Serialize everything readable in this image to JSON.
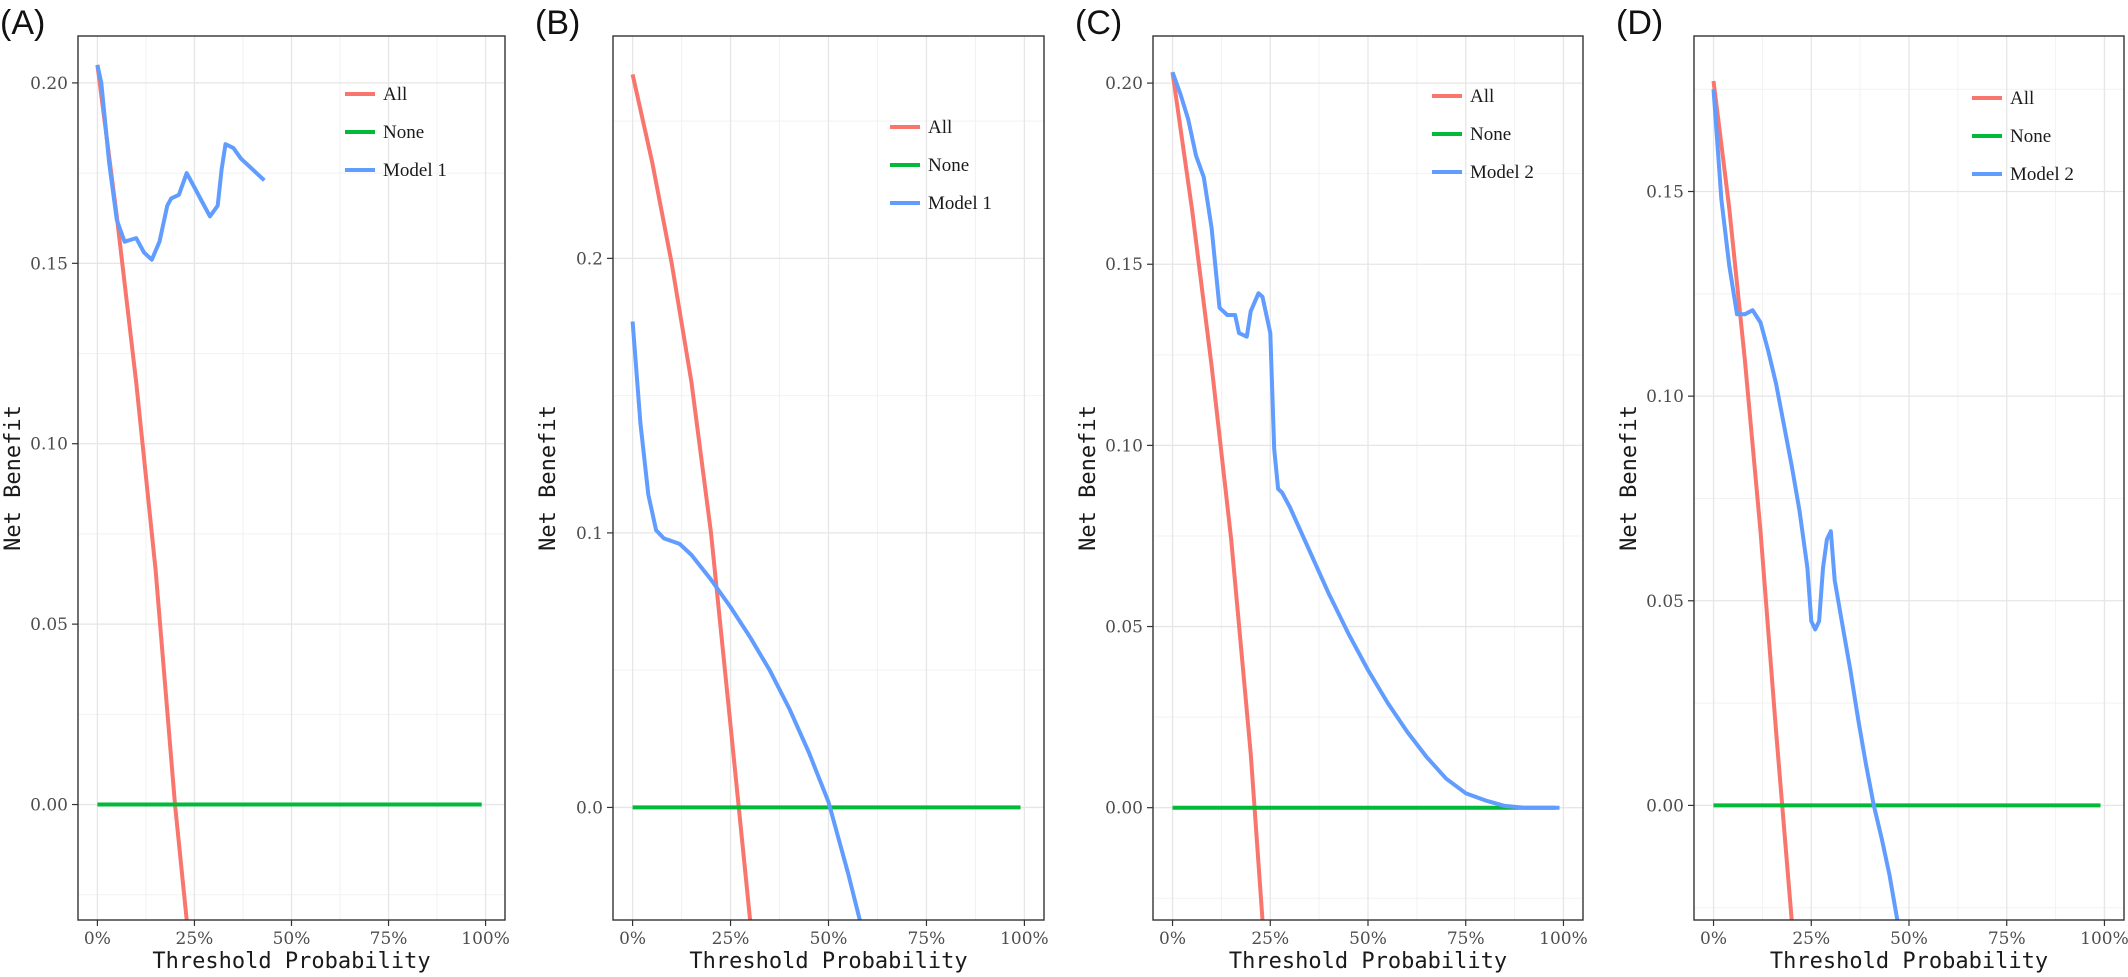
{
  "colors": {
    "all": "#F8766D",
    "none": "#00BA38",
    "model": "#619CFF"
  },
  "chart_data": [
    {
      "panel": "(A)",
      "type": "line",
      "xlabel": "Threshold Probability",
      "ylabel": "Net Benefit",
      "x_ticks": [
        "0%",
        "25%",
        "50%",
        "75%",
        "100%"
      ],
      "y_ticks": [
        "0.00",
        "0.05",
        "0.10",
        "0.15",
        "0.20"
      ],
      "xlim": [
        -0.05,
        1.05
      ],
      "ylim": [
        -0.032,
        0.213
      ],
      "y_tick_values": [
        0,
        0.05,
        0.1,
        0.15,
        0.2
      ],
      "grid": true,
      "legend_position": "top-right",
      "series": [
        {
          "name": "All",
          "color_key": "all",
          "x": [
            0,
            0.05,
            0.1,
            0.15,
            0.2,
            0.23
          ],
          "y": [
            0.205,
            0.163,
            0.117,
            0.065,
            0.0,
            -0.032
          ]
        },
        {
          "name": "None",
          "color_key": "none",
          "x": [
            0,
            0.99
          ],
          "y": [
            0,
            0
          ]
        },
        {
          "name": "Model 1",
          "color_key": "model",
          "x": [
            0,
            0.01,
            0.03,
            0.05,
            0.07,
            0.1,
            0.12,
            0.14,
            0.16,
            0.18,
            0.19,
            0.21,
            0.23,
            0.25,
            0.27,
            0.29,
            0.31,
            0.32,
            0.33,
            0.35,
            0.37,
            0.39,
            0.43
          ],
          "y": [
            0.205,
            0.2,
            0.178,
            0.162,
            0.156,
            0.157,
            0.153,
            0.151,
            0.156,
            0.166,
            0.168,
            0.169,
            0.175,
            0.171,
            0.167,
            0.163,
            0.166,
            0.176,
            0.183,
            0.182,
            0.179,
            0.177,
            0.173
          ]
        }
      ]
    },
    {
      "panel": "(B)",
      "type": "line",
      "xlabel": "Threshold Probability",
      "ylabel": "Net Benefit",
      "x_ticks": [
        "0%",
        "25%",
        "50%",
        "75%",
        "100%"
      ],
      "y_ticks": [
        "0.0",
        "0.1",
        "0.2"
      ],
      "xlim": [
        -0.05,
        1.05
      ],
      "ylim": [
        -0.041,
        0.281
      ],
      "y_tick_values": [
        0,
        0.1,
        0.2
      ],
      "grid": true,
      "legend_position": "top-right",
      "series": [
        {
          "name": "All",
          "color_key": "all",
          "x": [
            0,
            0.05,
            0.1,
            0.15,
            0.2,
            0.25,
            0.3
          ],
          "y": [
            0.267,
            0.235,
            0.198,
            0.155,
            0.1,
            0.03,
            -0.041
          ]
        },
        {
          "name": "None",
          "color_key": "none",
          "x": [
            0,
            0.99
          ],
          "y": [
            0,
            0
          ]
        },
        {
          "name": "Model 1",
          "color_key": "model",
          "x": [
            0,
            0.02,
            0.04,
            0.06,
            0.08,
            0.1,
            0.12,
            0.15,
            0.2,
            0.25,
            0.3,
            0.35,
            0.4,
            0.45,
            0.5,
            0.55,
            0.58
          ],
          "y": [
            0.177,
            0.14,
            0.114,
            0.101,
            0.098,
            0.097,
            0.096,
            0.092,
            0.083,
            0.073,
            0.062,
            0.05,
            0.036,
            0.02,
            0.002,
            -0.024,
            -0.041
          ]
        }
      ]
    },
    {
      "panel": "(C)",
      "type": "line",
      "xlabel": "Threshold Probability",
      "ylabel": "Net Benefit",
      "x_ticks": [
        "0%",
        "25%",
        "50%",
        "75%",
        "100%"
      ],
      "y_ticks": [
        "0.00",
        "0.05",
        "0.10",
        "0.15",
        "0.20"
      ],
      "xlim": [
        -0.05,
        1.05
      ],
      "ylim": [
        -0.031,
        0.213
      ],
      "y_tick_values": [
        0,
        0.05,
        0.1,
        0.15,
        0.2
      ],
      "grid": true,
      "legend_position": "top-right",
      "series": [
        {
          "name": "All",
          "color_key": "all",
          "x": [
            0,
            0.05,
            0.1,
            0.15,
            0.2,
            0.23
          ],
          "y": [
            0.203,
            0.165,
            0.122,
            0.074,
            0.015,
            -0.031
          ]
        },
        {
          "name": "None",
          "color_key": "none",
          "x": [
            0,
            0.98
          ],
          "y": [
            0,
            0
          ]
        },
        {
          "name": "Model 2",
          "color_key": "model",
          "x": [
            0,
            0.02,
            0.04,
            0.06,
            0.08,
            0.1,
            0.12,
            0.14,
            0.16,
            0.17,
            0.19,
            0.2,
            0.22,
            0.23,
            0.25,
            0.26,
            0.27,
            0.28,
            0.3,
            0.35,
            0.4,
            0.45,
            0.5,
            0.55,
            0.6,
            0.65,
            0.7,
            0.75,
            0.8,
            0.85,
            0.9,
            0.95,
            0.99
          ],
          "y": [
            0.203,
            0.197,
            0.19,
            0.18,
            0.174,
            0.16,
            0.138,
            0.136,
            0.136,
            0.131,
            0.13,
            0.137,
            0.142,
            0.141,
            0.131,
            0.099,
            0.088,
            0.087,
            0.083,
            0.071,
            0.059,
            0.048,
            0.038,
            0.029,
            0.021,
            0.014,
            0.008,
            0.004,
            0.002,
            0.0005,
            0.0,
            0.0,
            0.0
          ]
        }
      ]
    },
    {
      "panel": "(D)",
      "type": "line",
      "xlabel": "Threshold Probability",
      "ylabel": "Net Benefit",
      "x_ticks": [
        "0%",
        "25%",
        "50%",
        "75%",
        "100%"
      ],
      "y_ticks": [
        "0.00",
        "0.05",
        "0.10",
        "0.15"
      ],
      "xlim": [
        -0.05,
        1.05
      ],
      "ylim": [
        -0.028,
        0.188
      ],
      "y_tick_values": [
        0,
        0.05,
        0.1,
        0.15
      ],
      "grid": true,
      "legend_position": "top-right",
      "series": [
        {
          "name": "All",
          "color_key": "all",
          "x": [
            0,
            0.04,
            0.08,
            0.12,
            0.16,
            0.2
          ],
          "y": [
            0.177,
            0.146,
            0.109,
            0.067,
            0.018,
            -0.028
          ]
        },
        {
          "name": "None",
          "color_key": "none",
          "x": [
            0,
            0.99
          ],
          "y": [
            0,
            0
          ]
        },
        {
          "name": "Model 2",
          "color_key": "model",
          "x": [
            0,
            0.02,
            0.04,
            0.06,
            0.08,
            0.1,
            0.12,
            0.14,
            0.16,
            0.18,
            0.2,
            0.22,
            0.24,
            0.25,
            0.26,
            0.27,
            0.28,
            0.29,
            0.3,
            0.31,
            0.33,
            0.35,
            0.37,
            0.39,
            0.41,
            0.43,
            0.45,
            0.47
          ],
          "y": [
            0.175,
            0.148,
            0.132,
            0.12,
            0.12,
            0.121,
            0.118,
            0.111,
            0.103,
            0.093,
            0.083,
            0.072,
            0.058,
            0.045,
            0.043,
            0.045,
            0.058,
            0.065,
            0.067,
            0.055,
            0.044,
            0.033,
            0.021,
            0.01,
            0.0,
            -0.008,
            -0.017,
            -0.028
          ]
        }
      ]
    }
  ]
}
